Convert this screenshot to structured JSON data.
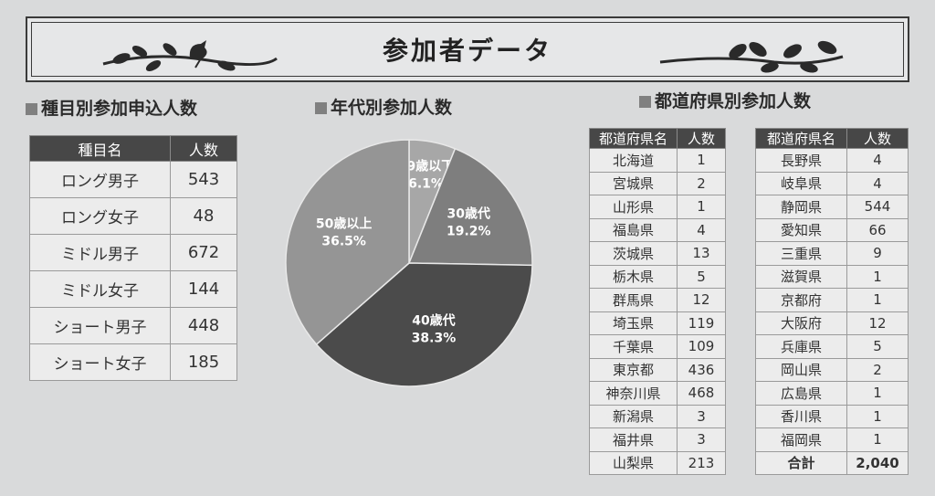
{
  "title": "参加者データ",
  "icons": [
    "bird-branch-icon",
    "leaf-branch-icon"
  ],
  "event_section": {
    "title": "種目別参加申込人数",
    "headers": [
      "種目名",
      "人数"
    ],
    "rows": [
      {
        "name": "ロング男子",
        "count": "543"
      },
      {
        "name": "ロング女子",
        "count": "48"
      },
      {
        "name": "ミドル男子",
        "count": "672"
      },
      {
        "name": "ミドル女子",
        "count": "144"
      },
      {
        "name": "ショート男子",
        "count": "448"
      },
      {
        "name": "ショート女子",
        "count": "185"
      }
    ]
  },
  "age_section": {
    "title": "年代別参加人数"
  },
  "chart_data": {
    "type": "pie",
    "title": "年代別参加人数",
    "slices": [
      {
        "label": "29歳以下",
        "value": 6.1,
        "text": "6.1%",
        "color": "#a7a7a7"
      },
      {
        "label": "30歳代",
        "value": 19.2,
        "text": "19.2%",
        "color": "#7e7e7e"
      },
      {
        "label": "40歳代",
        "value": 38.3,
        "text": "38.3%",
        "color": "#4b4b4b"
      },
      {
        "label": "50歳以上",
        "value": 36.5,
        "text": "36.5%",
        "color": "#959595"
      }
    ]
  },
  "pref_section": {
    "title": "都道府県別参加人数",
    "headers": [
      "都道府県名",
      "人数"
    ],
    "left_rows": [
      {
        "name": "北海道",
        "count": "1"
      },
      {
        "name": "宮城県",
        "count": "2"
      },
      {
        "name": "山形県",
        "count": "1"
      },
      {
        "name": "福島県",
        "count": "4"
      },
      {
        "name": "茨城県",
        "count": "13"
      },
      {
        "name": "栃木県",
        "count": "5"
      },
      {
        "name": "群馬県",
        "count": "12"
      },
      {
        "name": "埼玉県",
        "count": "119"
      },
      {
        "name": "千葉県",
        "count": "109"
      },
      {
        "name": "東京都",
        "count": "436"
      },
      {
        "name": "神奈川県",
        "count": "468"
      },
      {
        "name": "新潟県",
        "count": "3"
      },
      {
        "name": "福井県",
        "count": "3"
      },
      {
        "name": "山梨県",
        "count": "213"
      }
    ],
    "right_rows": [
      {
        "name": "長野県",
        "count": "4"
      },
      {
        "name": "岐阜県",
        "count": "4"
      },
      {
        "name": "静岡県",
        "count": "544"
      },
      {
        "name": "愛知県",
        "count": "66"
      },
      {
        "name": "三重県",
        "count": "9"
      },
      {
        "name": "滋賀県",
        "count": "1"
      },
      {
        "name": "京都府",
        "count": "1"
      },
      {
        "name": "大阪府",
        "count": "12"
      },
      {
        "name": "兵庫県",
        "count": "5"
      },
      {
        "name": "岡山県",
        "count": "2"
      },
      {
        "name": "広島県",
        "count": "1"
      },
      {
        "name": "香川県",
        "count": "1"
      },
      {
        "name": "福岡県",
        "count": "1"
      }
    ],
    "total_label": "合計",
    "total_value": "2,040"
  }
}
